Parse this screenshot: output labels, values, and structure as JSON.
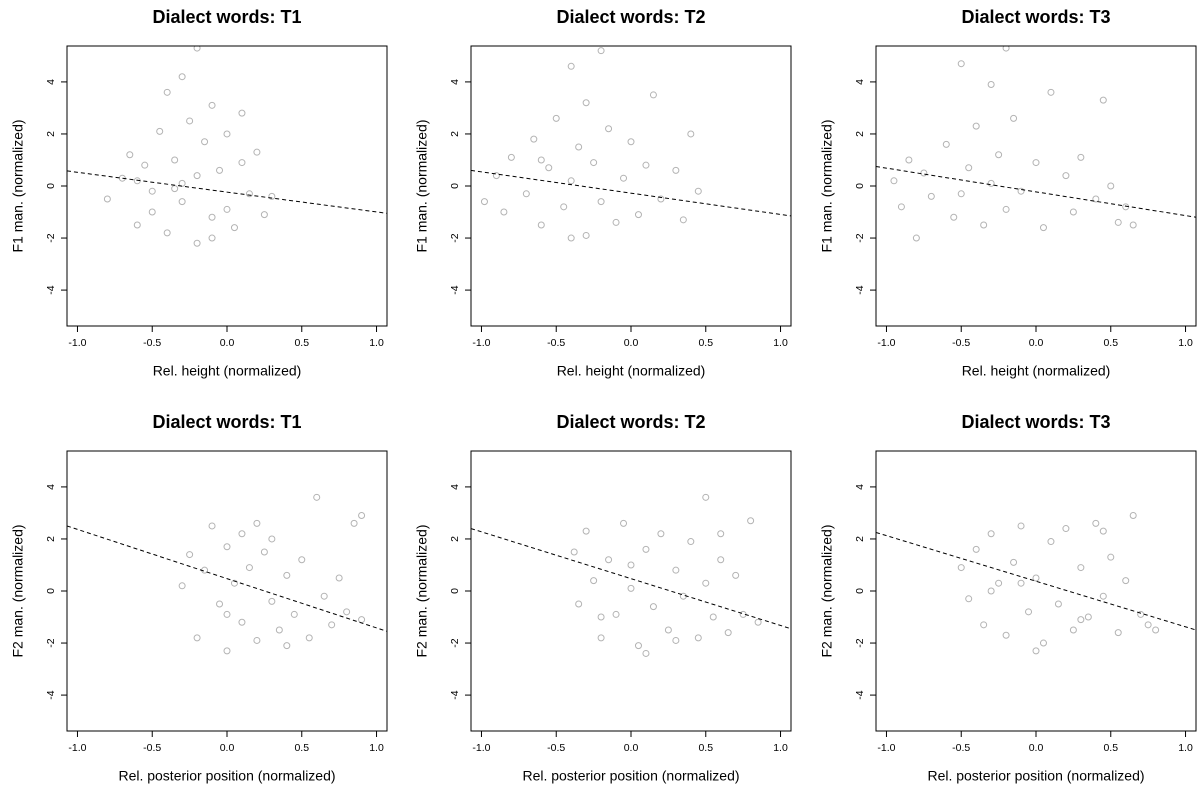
{
  "chart_data": [
    {
      "type": "scatter",
      "title": "Dialect words: T1",
      "x_label": "Rel. height (normalized)",
      "y_label": "F1 man. (normalized)",
      "color": "#b3b3b3",
      "x": [
        -0.8,
        -0.7,
        -0.65,
        -0.6,
        -0.55,
        -0.5,
        -0.45,
        -0.4,
        -0.4,
        -0.35,
        -0.3,
        -0.3,
        -0.25,
        -0.2,
        -0.2,
        -0.15,
        -0.1,
        -0.1,
        -0.05,
        0,
        0,
        0.05,
        0.1,
        0.15,
        0.2,
        0.25,
        0.3,
        -0.5,
        -0.3,
        -0.2,
        -0.6,
        -0.1,
        0.1,
        -0.35
      ],
      "values": [
        -0.5,
        0.3,
        1.2,
        -1.5,
        0.8,
        -0.2,
        2.1,
        -1.8,
        3.6,
        1.0,
        -0.6,
        4.2,
        2.5,
        -2.2,
        0.4,
        1.7,
        -1.2,
        3.1,
        0.6,
        -0.9,
        2.0,
        -1.6,
        0.9,
        -0.3,
        1.3,
        -1.1,
        -0.4,
        -1.0,
        0.1,
        5.3,
        0.2,
        -2.0,
        2.8,
        -0.1
      ],
      "trendline": {
        "x": [
          -1.07,
          1.07
        ],
        "values": [
          0.58,
          -1.05
        ]
      },
      "xlim": [
        -1.07,
        1.07
      ],
      "ylim": [
        -5.38,
        5.38
      ],
      "xticks": [
        {
          "value": -1,
          "label": "-1.0"
        },
        -0.5,
        {
          "value": 0,
          "label": "0.0"
        },
        0.5,
        {
          "value": 1,
          "label": "1.0"
        }
      ],
      "yticks": [
        -4,
        -2,
        0,
        2,
        4
      ]
    },
    {
      "type": "scatter",
      "title": "Dialect words: T2",
      "x_label": "Rel. height (normalized)",
      "y_label": "F1 man. (normalized)",
      "color": "#b3b3b3",
      "x": [
        -0.98,
        -0.9,
        -0.85,
        -0.8,
        -0.7,
        -0.65,
        -0.6,
        -0.55,
        -0.5,
        -0.45,
        -0.4,
        -0.4,
        -0.35,
        -0.3,
        -0.3,
        -0.25,
        -0.2,
        -0.15,
        -0.1,
        -0.05,
        0,
        0.05,
        0.1,
        0.15,
        0.2,
        0.3,
        0.35,
        0.4,
        0.45,
        -0.4,
        -0.2,
        -0.6
      ],
      "values": [
        -0.6,
        0.4,
        -1.0,
        1.1,
        -0.3,
        1.8,
        -1.5,
        0.7,
        2.6,
        -0.8,
        4.6,
        0.2,
        1.5,
        -1.9,
        3.2,
        0.9,
        -0.6,
        2.2,
        -1.4,
        0.3,
        1.7,
        -1.1,
        0.8,
        3.5,
        -0.5,
        0.6,
        -1.3,
        2.0,
        -0.2,
        -2.0,
        5.2,
        1.0
      ],
      "trendline": {
        "x": [
          -1.07,
          1.07
        ],
        "values": [
          0.6,
          -1.15
        ]
      },
      "xlim": [
        -1.07,
        1.07
      ],
      "ylim": [
        -5.38,
        5.38
      ],
      "xticks": [
        {
          "value": -1,
          "label": "-1.0"
        },
        -0.5,
        {
          "value": 0,
          "label": "0.0"
        },
        0.5,
        {
          "value": 1,
          "label": "1.0"
        }
      ],
      "yticks": [
        -4,
        -2,
        0,
        2,
        4
      ]
    },
    {
      "type": "scatter",
      "title": "Dialect words: T3",
      "x_label": "Rel. height (normalized)",
      "y_label": "F1 man. (normalized)",
      "color": "#b3b3b3",
      "x": [
        -0.95,
        -0.9,
        -0.85,
        -0.8,
        -0.75,
        -0.7,
        -0.6,
        -0.55,
        -0.5,
        -0.45,
        -0.4,
        -0.35,
        -0.3,
        -0.3,
        -0.25,
        -0.2,
        -0.15,
        -0.1,
        0,
        0.05,
        0.1,
        0.2,
        0.25,
        0.3,
        0.4,
        0.45,
        0.5,
        0.55,
        0.6,
        0.65,
        -0.5,
        -0.2
      ],
      "values": [
        0.2,
        -0.8,
        1.0,
        -2.0,
        0.5,
        -0.4,
        1.6,
        -1.2,
        4.7,
        0.7,
        2.3,
        -1.5,
        3.9,
        0.1,
        1.2,
        -0.9,
        2.6,
        -0.2,
        0.9,
        -1.6,
        3.6,
        0.4,
        -1.0,
        1.1,
        -0.5,
        3.3,
        0.0,
        -1.4,
        -0.8,
        -1.5,
        -0.3,
        5.3
      ],
      "trendline": {
        "x": [
          -1.07,
          1.07
        ],
        "values": [
          0.75,
          -1.2
        ]
      },
      "xlim": [
        -1.07,
        1.07
      ],
      "ylim": [
        -5.38,
        5.38
      ],
      "xticks": [
        {
          "value": -1,
          "label": "-1.0"
        },
        -0.5,
        {
          "value": 0,
          "label": "0.0"
        },
        0.5,
        {
          "value": 1,
          "label": "1.0"
        }
      ],
      "yticks": [
        -4,
        -2,
        0,
        2,
        4
      ]
    },
    {
      "type": "scatter",
      "title": "Dialect words: T1",
      "x_label": "Rel. posterior position (normalized)",
      "y_label": "F2 man. (normalized)",
      "color": "#b3b3b3",
      "x": [
        -0.3,
        -0.25,
        -0.2,
        -0.15,
        -0.1,
        -0.05,
        0,
        0,
        0.05,
        0.1,
        0.1,
        0.15,
        0.2,
        0.25,
        0.3,
        0.3,
        0.35,
        0.4,
        0.45,
        0.5,
        0.55,
        0.6,
        0.65,
        0.7,
        0.75,
        0.8,
        0.85,
        0.9,
        0.9,
        0.2,
        0.0,
        0.4
      ],
      "values": [
        0.2,
        1.4,
        -1.8,
        0.8,
        2.5,
        -0.5,
        1.7,
        -2.3,
        0.3,
        2.2,
        -1.2,
        0.9,
        -1.9,
        1.5,
        -0.4,
        2.0,
        -1.5,
        0.6,
        -0.9,
        1.2,
        -1.8,
        3.6,
        -0.2,
        -1.3,
        0.5,
        -0.8,
        2.6,
        2.9,
        -1.1,
        2.6,
        -0.9,
        -2.1
      ],
      "trendline": {
        "x": [
          -1.07,
          1.07
        ],
        "values": [
          2.5,
          -1.55
        ]
      },
      "xlim": [
        -1.07,
        1.07
      ],
      "ylim": [
        -5.38,
        5.38
      ],
      "xticks": [
        {
          "value": -1,
          "label": "-1.0"
        },
        -0.5,
        {
          "value": 0,
          "label": "0.0"
        },
        0.5,
        {
          "value": 1,
          "label": "1.0"
        }
      ],
      "yticks": [
        -4,
        -2,
        0,
        2,
        4
      ]
    },
    {
      "type": "scatter",
      "title": "Dialect words: T2",
      "x_label": "Rel. posterior position (normalized)",
      "y_label": "F2 man. (normalized)",
      "color": "#b3b3b3",
      "x": [
        -0.38,
        -0.35,
        -0.3,
        -0.25,
        -0.2,
        -0.15,
        -0.1,
        -0.05,
        0,
        0.05,
        0.1,
        0.15,
        0.2,
        0.25,
        0.3,
        0.35,
        0.4,
        0.45,
        0.5,
        0.5,
        0.55,
        0.6,
        0.65,
        0.7,
        0.75,
        0.8,
        0.85,
        0.1,
        0.3,
        -0.2,
        0.6,
        0.0
      ],
      "values": [
        1.5,
        -0.5,
        2.3,
        0.4,
        -1.8,
        1.2,
        -0.9,
        2.6,
        0.1,
        -2.1,
        1.6,
        -0.6,
        2.2,
        -1.5,
        0.8,
        -0.2,
        1.9,
        -1.8,
        0.3,
        3.6,
        -1.0,
        1.2,
        -1.6,
        0.6,
        -0.9,
        2.7,
        -1.2,
        -2.4,
        -1.9,
        -1.0,
        2.2,
        1.0
      ],
      "trendline": {
        "x": [
          -1.07,
          1.07
        ],
        "values": [
          2.4,
          -1.45
        ]
      },
      "xlim": [
        -1.07,
        1.07
      ],
      "ylim": [
        -5.38,
        5.38
      ],
      "xticks": [
        {
          "value": -1,
          "label": "-1.0"
        },
        -0.5,
        {
          "value": 0,
          "label": "0.0"
        },
        0.5,
        {
          "value": 1,
          "label": "1.0"
        }
      ],
      "yticks": [
        -4,
        -2,
        0,
        2,
        4
      ]
    },
    {
      "type": "scatter",
      "title": "Dialect words: T3",
      "x_label": "Rel. posterior position (normalized)",
      "y_label": "F2 man. (normalized)",
      "color": "#b3b3b3",
      "x": [
        -0.5,
        -0.45,
        -0.4,
        -0.35,
        -0.3,
        -0.25,
        -0.2,
        -0.15,
        -0.1,
        -0.05,
        0,
        0.05,
        0.1,
        0.15,
        0.2,
        0.25,
        0.3,
        0.35,
        0.4,
        0.45,
        0.5,
        0.55,
        0.6,
        0.65,
        0.7,
        0.75,
        0.8,
        -0.3,
        0.0,
        0.3,
        0.45,
        -0.1
      ],
      "values": [
        0.9,
        -0.3,
        1.6,
        -1.3,
        2.2,
        0.3,
        -1.7,
        1.1,
        2.5,
        -0.8,
        0.5,
        -2.0,
        1.9,
        -0.5,
        2.4,
        -1.5,
        0.9,
        -1.0,
        2.6,
        -0.2,
        1.3,
        -1.6,
        0.4,
        2.9,
        -0.9,
        -1.3,
        -1.5,
        0.0,
        -2.3,
        -1.1,
        2.3,
        0.3
      ],
      "trendline": {
        "x": [
          -1.07,
          1.07
        ],
        "values": [
          2.25,
          -1.5
        ]
      },
      "xlim": [
        -1.07,
        1.07
      ],
      "ylim": [
        -5.38,
        5.38
      ],
      "xticks": [
        {
          "value": -1,
          "label": "-1.0"
        },
        -0.5,
        {
          "value": 0,
          "label": "0.0"
        },
        0.5,
        {
          "value": 1,
          "label": "1.0"
        }
      ],
      "yticks": [
        -4,
        -2,
        0,
        2,
        4
      ]
    }
  ]
}
